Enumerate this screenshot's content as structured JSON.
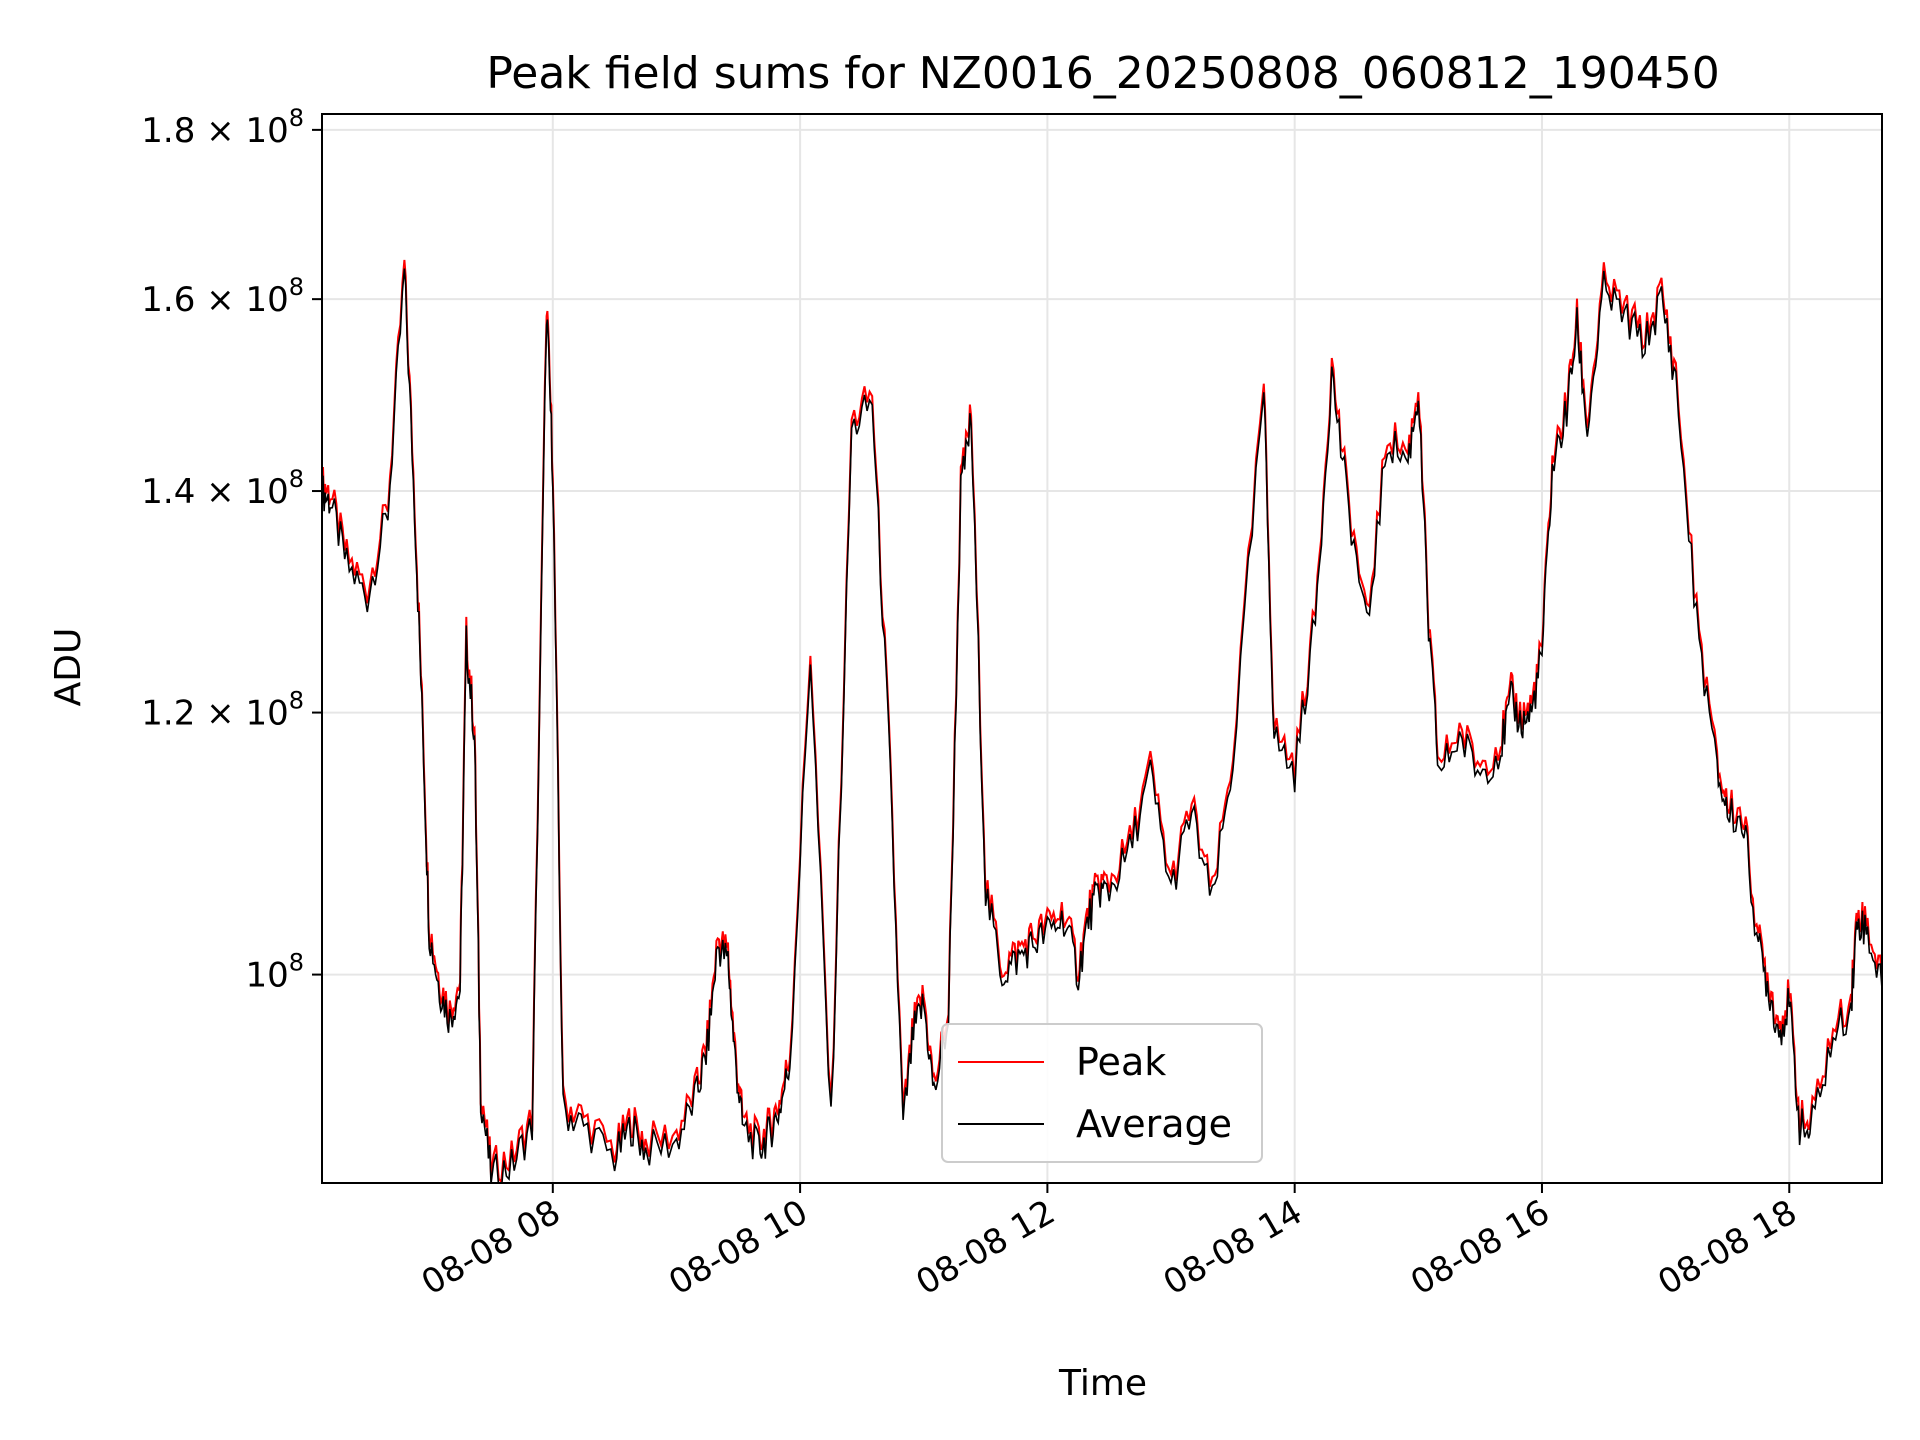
{
  "chart_data": {
    "type": "line",
    "title": "Peak field sums for NZ0016_20250808_060812_190450",
    "xlabel": "Time",
    "ylabel": "ADU",
    "y_scale": "log",
    "grid": true,
    "legend_position": "bottom-center",
    "xlim": [
      "2025-08-08 06:08",
      "2025-08-08 18:45"
    ],
    "ylim": [
      86500000,
      182000000
    ],
    "x_ticks": [
      {
        "t": "2025-08-08 08:00",
        "label": "08-08 08"
      },
      {
        "t": "2025-08-08 10:00",
        "label": "08-08 10"
      },
      {
        "t": "2025-08-08 12:00",
        "label": "08-08 12"
      },
      {
        "t": "2025-08-08 14:00",
        "label": "08-08 14"
      },
      {
        "t": "2025-08-08 16:00",
        "label": "08-08 16"
      },
      {
        "t": "2025-08-08 18:00",
        "label": "08-08 18"
      }
    ],
    "y_ticks": [
      {
        "v": 100000000,
        "base": "10",
        "exp": "8",
        "mant": ""
      },
      {
        "v": 120000000,
        "base": "10",
        "exp": "8",
        "mant": "1.2 × "
      },
      {
        "v": 140000000,
        "base": "10",
        "exp": "8",
        "mant": "1.4 × "
      },
      {
        "v": 160000000,
        "base": "10",
        "exp": "8",
        "mant": "1.6 × "
      },
      {
        "v": 180000000,
        "base": "10",
        "exp": "8",
        "mant": "1.8 × "
      }
    ],
    "series": [
      {
        "name": "Peak",
        "color": "#ff0000",
        "offset": 0.006
      },
      {
        "name": "Average",
        "color": "#000000",
        "offset": 0.0
      }
    ],
    "x": [
      "2025-08-08 06:08",
      "2025-08-08 06:12",
      "2025-08-08 06:20",
      "2025-08-08 06:30",
      "2025-08-08 06:40",
      "2025-08-08 06:48",
      "2025-08-08 06:53",
      "2025-08-08 06:57",
      "2025-08-08 07:00",
      "2025-08-08 07:05",
      "2025-08-08 07:10",
      "2025-08-08 07:15",
      "2025-08-08 07:18",
      "2025-08-08 07:22",
      "2025-08-08 07:25",
      "2025-08-08 07:30",
      "2025-08-08 07:40",
      "2025-08-08 07:50",
      "2025-08-08 07:57",
      "2025-08-08 08:00",
      "2025-08-08 08:05",
      "2025-08-08 08:15",
      "2025-08-08 08:30",
      "2025-08-08 08:38",
      "2025-08-08 08:45",
      "2025-08-08 09:00",
      "2025-08-08 09:10",
      "2025-08-08 09:15",
      "2025-08-08 09:20",
      "2025-08-08 09:25",
      "2025-08-08 09:28",
      "2025-08-08 09:32",
      "2025-08-08 09:40",
      "2025-08-08 09:45",
      "2025-08-08 09:50",
      "2025-08-08 09:55",
      "2025-08-08 10:05",
      "2025-08-08 10:15",
      "2025-08-08 10:25",
      "2025-08-08 10:35",
      "2025-08-08 10:43",
      "2025-08-08 10:50",
      "2025-08-08 10:55",
      "2025-08-08 11:00",
      "2025-08-08 11:05",
      "2025-08-08 11:12",
      "2025-08-08 11:18",
      "2025-08-08 11:23",
      "2025-08-08 11:30",
      "2025-08-08 11:38",
      "2025-08-08 11:45",
      "2025-08-08 11:52",
      "2025-08-08 12:00",
      "2025-08-08 12:08",
      "2025-08-08 12:15",
      "2025-08-08 12:20",
      "2025-08-08 12:25",
      "2025-08-08 12:30",
      "2025-08-08 12:40",
      "2025-08-08 12:50",
      "2025-08-08 13:00",
      "2025-08-08 13:10",
      "2025-08-08 13:20",
      "2025-08-08 13:30",
      "2025-08-08 13:45",
      "2025-08-08 13:50",
      "2025-08-08 14:00",
      "2025-08-08 14:10",
      "2025-08-08 14:18",
      "2025-08-08 14:25",
      "2025-08-08 14:35",
      "2025-08-08 14:45",
      "2025-08-08 14:55",
      "2025-08-08 15:00",
      "2025-08-08 15:05",
      "2025-08-08 15:10",
      "2025-08-08 15:20",
      "2025-08-08 15:30",
      "2025-08-08 15:40",
      "2025-08-08 15:45",
      "2025-08-08 15:50",
      "2025-08-08 15:55",
      "2025-08-08 16:00",
      "2025-08-08 16:05",
      "2025-08-08 16:12",
      "2025-08-08 16:17",
      "2025-08-08 16:22",
      "2025-08-08 16:30",
      "2025-08-08 16:40",
      "2025-08-08 16:50",
      "2025-08-08 16:58",
      "2025-08-08 17:05",
      "2025-08-08 17:15",
      "2025-08-08 17:25",
      "2025-08-08 17:30",
      "2025-08-08 17:38",
      "2025-08-08 17:45",
      "2025-08-08 17:50",
      "2025-08-08 17:55",
      "2025-08-08 18:00",
      "2025-08-08 18:05",
      "2025-08-08 18:10",
      "2025-08-08 18:20",
      "2025-08-08 18:30",
      "2025-08-08 18:33",
      "2025-08-08 18:38",
      "2025-08-08 18:45"
    ],
    "values": [
      140000000,
      139000000,
      133000000,
      130000000,
      138000000,
      163000000,
      138000000,
      118000000,
      103000000,
      99000000,
      97000000,
      99000000,
      126000000,
      118000000,
      92000000,
      87000000,
      87500000,
      90000000,
      159000000,
      142000000,
      91000000,
      90000000,
      88000000,
      90000000,
      88500000,
      89000000,
      92000000,
      95000000,
      102000000,
      101000000,
      95000000,
      90000000,
      88500000,
      89500000,
      91000000,
      94000000,
      125000000,
      90000000,
      146000000,
      149000000,
      118000000,
      90000000,
      96000000,
      98000000,
      92000000,
      97000000,
      140000000,
      147000000,
      106000000,
      100000000,
      101000000,
      102000000,
      103000000,
      104000000,
      100000000,
      104000000,
      106000000,
      106000000,
      109000000,
      115000000,
      106000000,
      112000000,
      105000000,
      116000000,
      150000000,
      118000000,
      115000000,
      128000000,
      152000000,
      140000000,
      127000000,
      145000000,
      143000000,
      150000000,
      127000000,
      115000000,
      118000000,
      115000000,
      117000000,
      121000000,
      119000000,
      120000000,
      125000000,
      142000000,
      148000000,
      157000000,
      146000000,
      161000000,
      158000000,
      155000000,
      160000000,
      151000000,
      128000000,
      115000000,
      112000000,
      111000000,
      102000000,
      99000000,
      96000000,
      98000000,
      90000000,
      89500000,
      95000000,
      98000000,
      104000000,
      103000000,
      99000000
    ]
  },
  "legend": {
    "peak_label": "Peak",
    "average_label": "Average"
  }
}
